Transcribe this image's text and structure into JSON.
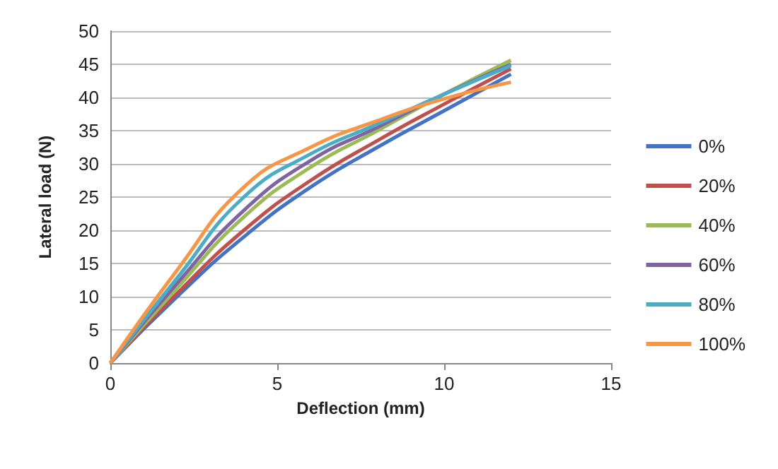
{
  "chart_data": {
    "type": "line",
    "xlabel": "Deflection (mm)",
    "ylabel": "Lateral load (N)",
    "x": [
      0,
      2,
      4,
      6,
      8,
      10,
      12
    ],
    "xlim": [
      0,
      15
    ],
    "xticks": [
      0,
      5,
      10,
      15
    ],
    "ylim": [
      0,
      50
    ],
    "yticks": [
      0,
      5,
      10,
      15,
      20,
      25,
      30,
      35,
      40,
      45,
      50
    ],
    "grid": "y",
    "legend": "right",
    "marker": "none",
    "line_style": "solid",
    "series": [
      {
        "name": "0%",
        "color": "#4472c4",
        "values": [
          0,
          10,
          19,
          26.5,
          32.5,
          38,
          43.5
        ]
      },
      {
        "name": "20%",
        "color": "#c0504d",
        "values": [
          0,
          10.5,
          20,
          27.5,
          33.5,
          39,
          44.3
        ]
      },
      {
        "name": "40%",
        "color": "#9bbb59",
        "values": [
          0,
          11.3,
          22,
          29.5,
          35,
          40.5,
          45.6
        ]
      },
      {
        "name": "60%",
        "color": "#8064a2",
        "values": [
          0,
          12,
          23,
          30.5,
          35.5,
          40.5,
          45
        ]
      },
      {
        "name": "80%",
        "color": "#4bacc6",
        "values": [
          0,
          12.8,
          25,
          31.5,
          36,
          40.5,
          44.8
        ]
      },
      {
        "name": "100%",
        "color": "#f79646",
        "values": [
          0,
          14,
          26.5,
          32.5,
          36.5,
          39.8,
          42.3
        ]
      }
    ]
  }
}
